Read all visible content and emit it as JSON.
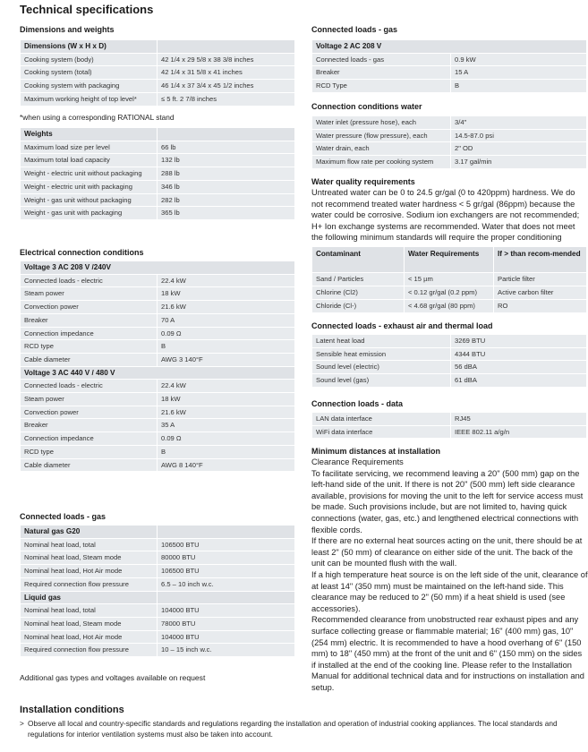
{
  "title": "Technical specifications",
  "left": {
    "dims_title": "Dimensions and weights",
    "dims": {
      "header": "Dimensions (W x H x D)",
      "rows": [
        [
          "Cooking system (body)",
          "42 1/4 x 29 5/8 x 38 3/8 inches"
        ],
        [
          "Cooking system (total)",
          "42 1/4 x 31 5/8 x 41 inches"
        ],
        [
          "Cooking system with packaging",
          "46 1/4 x 37 3/4 x 45 1/2 inches"
        ],
        [
          "Maximum working height of top level*",
          "≤ 5 ft. 2 7/8 inches"
        ]
      ]
    },
    "footnote": "*when using a corresponding RATIONAL stand",
    "weights": {
      "header": "Weights",
      "rows": [
        [
          "Maximum load size per level",
          "66 lb"
        ],
        [
          "Maximum total load capacity",
          "132 lb"
        ],
        [
          "Weight - electric unit without packaging",
          "288 lb"
        ],
        [
          "Weight - electric unit with packaging",
          "346 lb"
        ],
        [
          "Weight - gas unit without packaging",
          "282 lb"
        ],
        [
          "Weight - gas unit with packaging",
          "365 lb"
        ]
      ]
    },
    "electric_title": "Electrical connection conditions",
    "electric": [
      {
        "header": "Voltage 3 AC 208 V /240V",
        "rows": [
          [
            "Connected loads - electric",
            "22.4 kW"
          ],
          [
            "Steam power",
            "18 kW"
          ],
          [
            "Convection power",
            "21.6 kW"
          ],
          [
            "Breaker",
            "70 A"
          ],
          [
            "Connection impedance",
            "0.09 Ω"
          ],
          [
            "RCD type",
            "B"
          ],
          [
            "Cable diameter",
            "AWG 3 140°F"
          ]
        ]
      },
      {
        "header": "Voltage 3 AC 440 V / 480 V",
        "rows": [
          [
            "Connected loads - electric",
            "22.4 kW"
          ],
          [
            "Steam power",
            "18 kW"
          ],
          [
            "Convection power",
            "21.6 kW"
          ],
          [
            "Breaker",
            "35 A"
          ],
          [
            "Connection impedance",
            "0.09 Ω"
          ],
          [
            "RCD type",
            "B"
          ],
          [
            "Cable diameter",
            "AWG 8 140°F"
          ]
        ]
      }
    ],
    "gas_title": "Connected loads - gas",
    "gas": [
      {
        "header": "Natural gas G20",
        "rows": [
          [
            "Nominal heat load, total",
            "106500 BTU"
          ],
          [
            "Nominal heat load, Steam mode",
            "80000 BTU"
          ],
          [
            "Nominal heat load, Hot Air mode",
            "106500 BTU"
          ],
          [
            "Required connection flow pressure",
            "6.5 – 10 inch w.c."
          ]
        ]
      },
      {
        "header": "Liquid gas",
        "rows": [
          [
            "Nominal heat load, total",
            "104000 BTU"
          ],
          [
            "Nominal heat load, Steam mode",
            "78000 BTU"
          ],
          [
            "Nominal heat load, Hot Air mode",
            "104000 BTU"
          ],
          [
            "Required connection flow pressure",
            "10 – 15 inch w.c."
          ]
        ]
      }
    ],
    "gas_note": "Additional gas types and voltages available on request"
  },
  "right": {
    "gas_title": "Connected loads - gas",
    "gas": {
      "header": "Voltage 2 AC 208 V",
      "rows": [
        [
          "Connected loads - gas",
          "0.9 kW"
        ],
        [
          "Breaker",
          "15 A"
        ],
        [
          "RCD Type",
          "B"
        ]
      ]
    },
    "water_title": "Connection conditions water",
    "water": {
      "rows": [
        [
          "Water inlet (pressure hose), each",
          "3/4\""
        ],
        [
          "Water pressure (flow pressure), each",
          "14.5-87.0 psi"
        ],
        [
          "Water drain, each",
          "2\" OD"
        ],
        [
          "Maximum flow rate per cooking system",
          "3.17 gal/min"
        ]
      ]
    },
    "wq_title": "Water quality requirements",
    "wq_text": "Untreated water can be 0 to 24.5 gr/gal (0 to 420ppm) hardness. We do not recommend treated water hardness < 5 gr/gal (86ppm) because the water could be corrosive. Sodium ion exchangers are not recommended; H+ Ion exchange systems are recommended. Water that does not meet the following minimum standards will require the proper conditioning",
    "contaminants": {
      "headers": [
        "Contaminant",
        "Water Requirements",
        "If > than recom-mended"
      ],
      "rows": [
        [
          "Sand / Particles",
          "< 15 µm",
          "Particle filter"
        ],
        [
          "Chlorine (Cl2)",
          "< 0.12 gr/gal (0.2 ppm)",
          "Active carbon filter"
        ],
        [
          "Chloride (Cl-)",
          "< 4.68 gr/gal (80 ppm)",
          "RO"
        ]
      ]
    },
    "exhaust_title": "Connected loads - exhaust air and thermal load",
    "exhaust": {
      "rows": [
        [
          "Latent heat load",
          "3269 BTU"
        ],
        [
          "Sensible heat emission",
          "4344 BTU"
        ],
        [
          "Sound level (electric)",
          "56 dBA"
        ],
        [
          "Sound level (gas)",
          "61 dBA"
        ]
      ]
    },
    "data_title": "Connection loads - data",
    "data": {
      "rows": [
        [
          "LAN data interface",
          "RJ45"
        ],
        [
          "WiFi data interface",
          "IEEE 802.11 a/g/n"
        ]
      ]
    },
    "min_title": "Minimum distances at installation",
    "min_paragraphs": [
      "Clearance Requirements",
      "To facilitate servicing, we recommend leaving a 20\" (500 mm) gap on the left-hand side of the unit. If there is not 20\" (500 mm) left side clearance available, provisions for moving the unit to the left for service access must be made. Such provisions include, but are not limited to, having quick connections (water, gas, etc.) and lengthened electrical connections with flexible cords.",
      "If there are no external heat sources acting on the unit, there should be at least 2\" (50 mm) of clearance on either side of the unit. The back of the unit can be mounted flush with the wall.",
      "If a high temperature heat source is on the left side of the unit, clearance of at least 14\" (350 mm) must be maintained on the left-hand side. This clearance may be reduced to 2\" (50 mm) if a heat shield is used (see accessories).",
      "Recommended clearance from unobstructed rear exhaust pipes and any surface collecting grease or flammable material; 16\" (400 mm) gas, 10\" (254 mm) electric. It is recommended to have a hood overhang of 6\" (150 mm) to 18\" (450 mm) at the front of the unit and 6\" (150 mm) on the sides if installed at the end of the cooking line. Please refer to the Installation Manual for additional technical data and for instructions on installation and setup."
    ]
  },
  "installation": {
    "title": "Installation conditions",
    "bullet": ">",
    "text": "Observe all local and country-specific standards and regulations regarding the installation and operation of industrial cooking appliances. The local standards and regulations for interior ventilation systems must also be taken into account."
  }
}
